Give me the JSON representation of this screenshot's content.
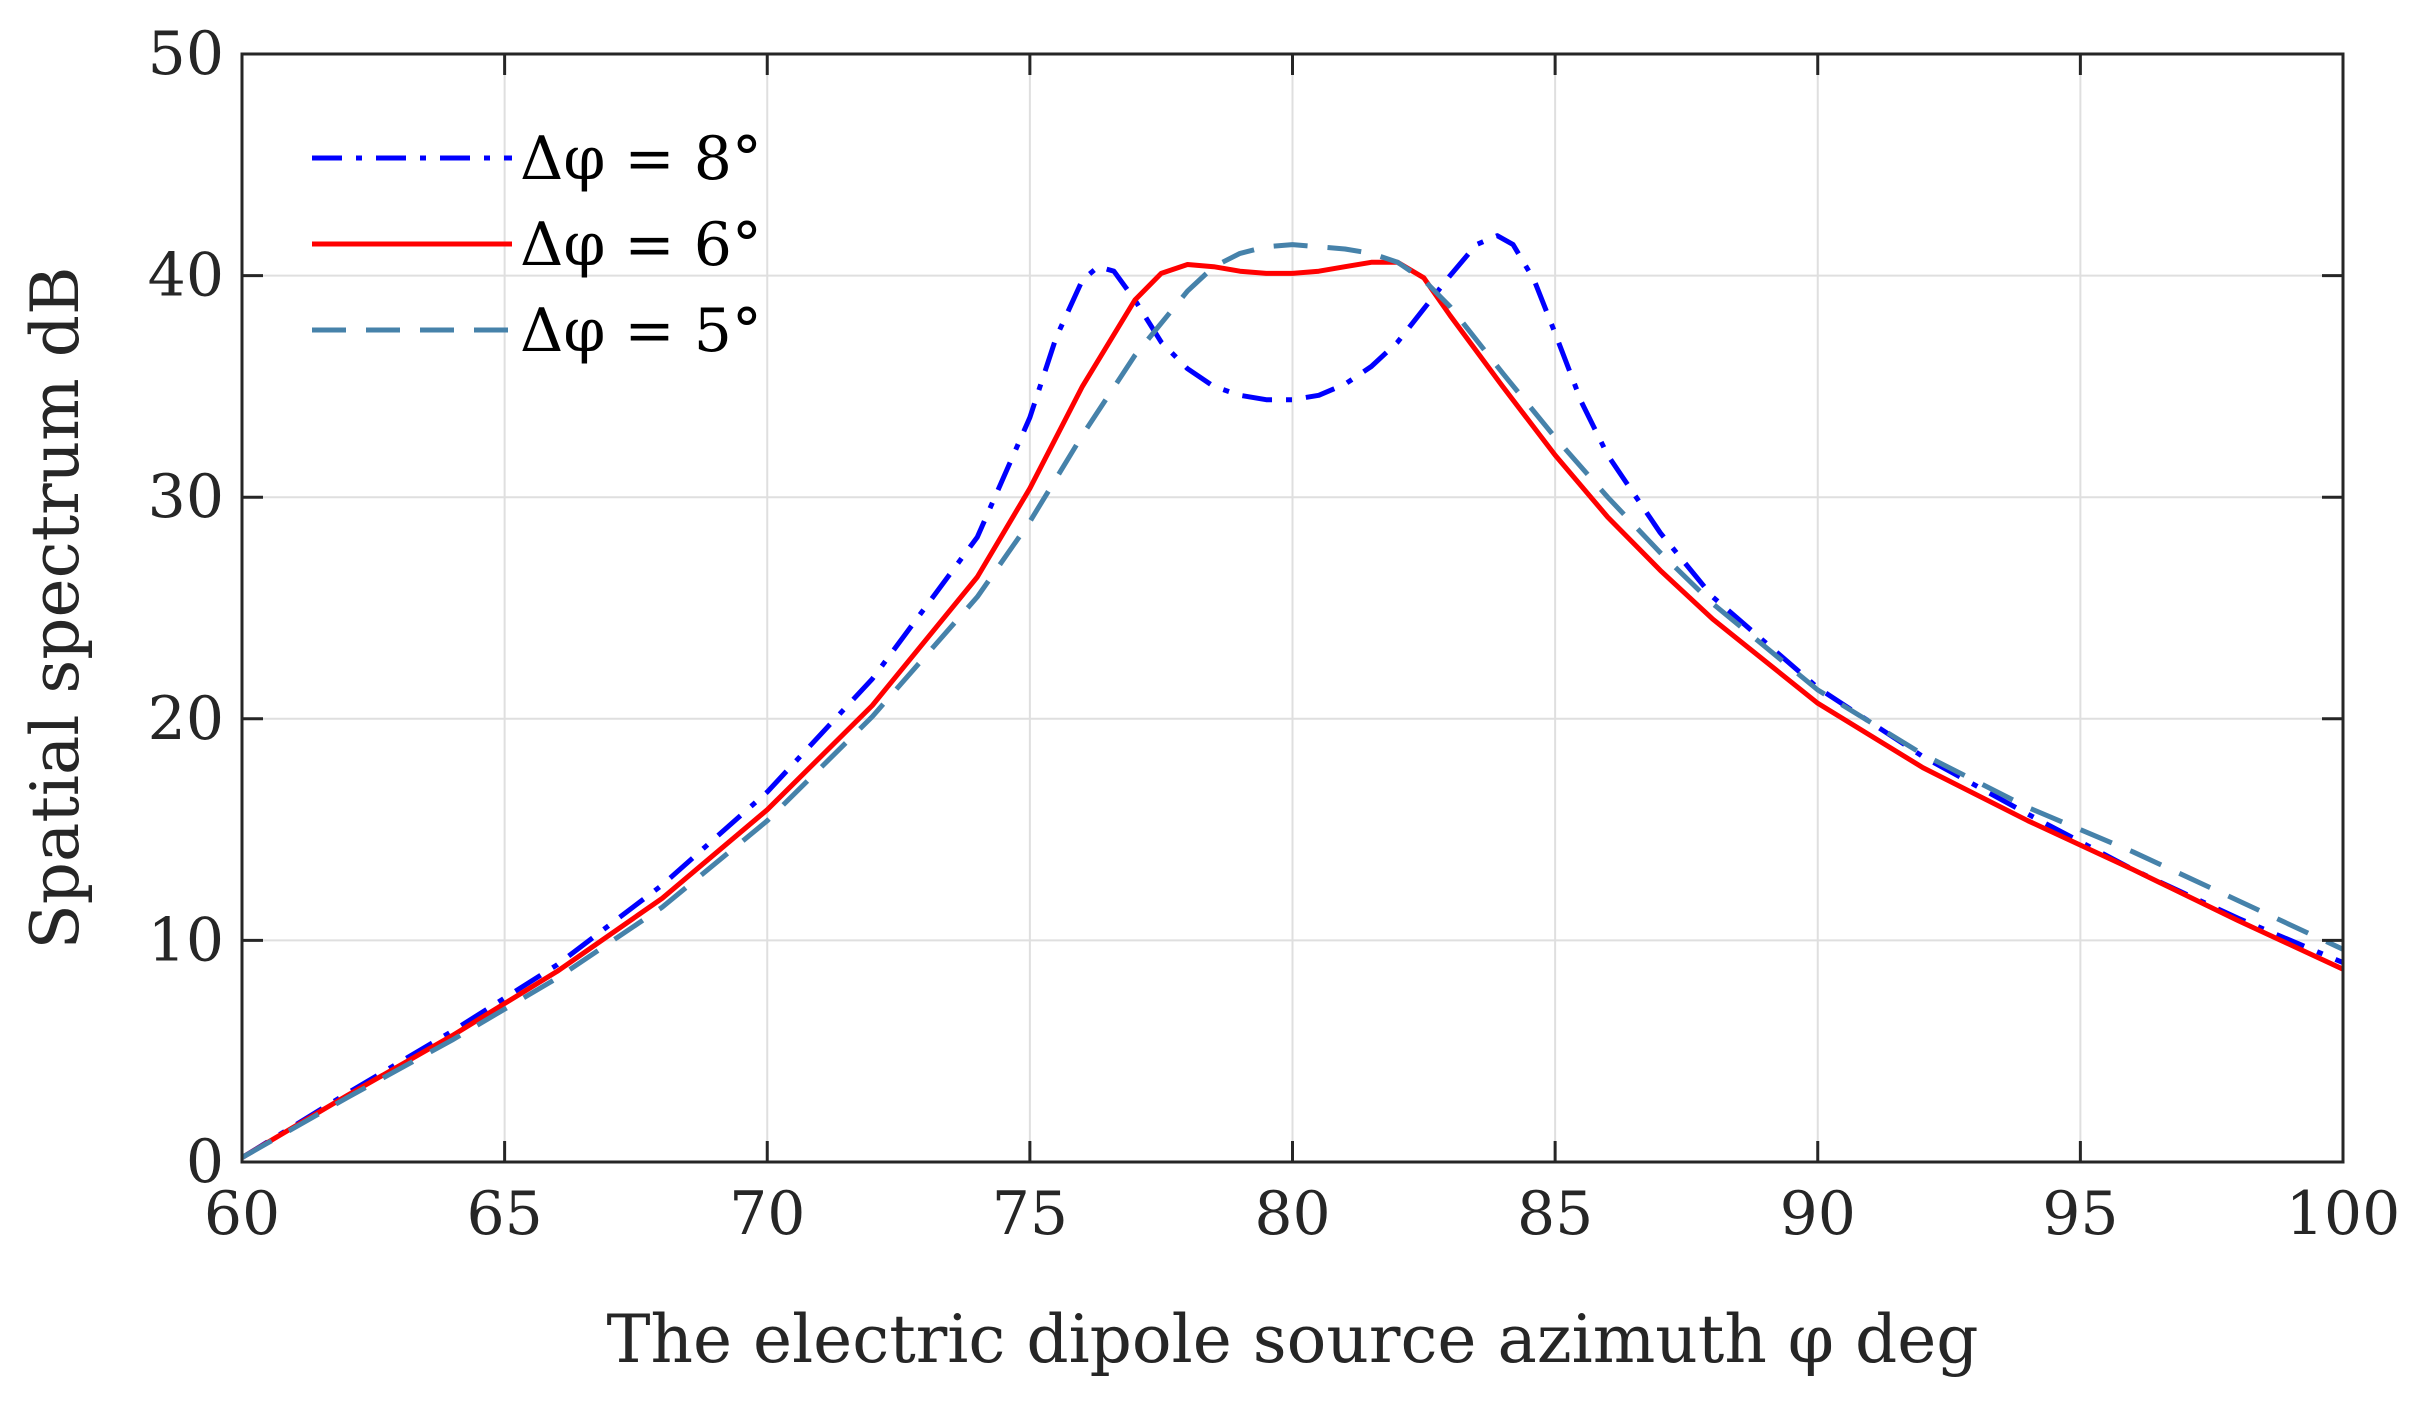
{
  "chart_data": {
    "type": "line",
    "title": "",
    "xlabel": "The electric dipole source azimuth φ deg",
    "ylabel": "Spatial spectrum dB",
    "xlim": [
      60,
      100
    ],
    "ylim": [
      0,
      50
    ],
    "xticks": [
      60,
      65,
      70,
      75,
      80,
      85,
      90,
      95,
      100
    ],
    "yticks": [
      0,
      10,
      20,
      30,
      40,
      50
    ],
    "grid": true,
    "legend_position": "top-left",
    "series": [
      {
        "name": "Δφ = 8°",
        "color": "#0000ff",
        "style": "dashdot",
        "x": [
          60,
          62,
          64,
          66,
          68,
          70,
          72,
          74,
          75,
          75.5,
          76,
          76.3,
          76.6,
          77,
          77.5,
          78,
          78.5,
          79,
          79.5,
          80,
          80.5,
          81,
          81.5,
          82,
          82.5,
          83,
          83.5,
          83.9,
          84.2,
          84.6,
          85,
          85.5,
          86,
          87,
          88,
          90,
          92,
          94,
          96,
          98,
          100
        ],
        "y": [
          0.2,
          3.1,
          5.9,
          8.9,
          12.5,
          16.7,
          21.8,
          28.2,
          33.6,
          37.2,
          39.8,
          40.4,
          40.2,
          38.9,
          37.0,
          35.8,
          35.0,
          34.6,
          34.4,
          34.4,
          34.6,
          35.1,
          35.9,
          37.0,
          38.5,
          40.0,
          41.4,
          41.8,
          41.4,
          39.8,
          37.4,
          34.3,
          31.9,
          28.4,
          25.5,
          21.4,
          18.3,
          15.7,
          13.2,
          11.0,
          9.0
        ]
      },
      {
        "name": "Δφ = 6°",
        "color": "#ff0000",
        "style": "solid",
        "x": [
          60,
          62,
          64,
          66,
          68,
          70,
          72,
          74,
          75,
          76,
          77,
          77.5,
          78,
          78.5,
          79,
          79.5,
          80,
          80.5,
          81,
          81.5,
          82,
          82.5,
          83,
          84,
          85,
          86,
          87,
          88,
          90,
          92,
          94,
          96,
          98,
          100
        ],
        "y": [
          0.2,
          3.0,
          5.7,
          8.6,
          11.9,
          15.9,
          20.6,
          26.4,
          30.4,
          35.0,
          38.9,
          40.1,
          40.5,
          40.4,
          40.2,
          40.1,
          40.1,
          40.2,
          40.4,
          40.6,
          40.6,
          39.9,
          38.2,
          35.0,
          31.9,
          29.1,
          26.7,
          24.5,
          20.7,
          17.8,
          15.4,
          13.2,
          10.9,
          8.7
        ]
      },
      {
        "name": "Δφ = 5°",
        "color": "#4682aa",
        "style": "dashed",
        "x": [
          60,
          62,
          64,
          66,
          68,
          70,
          72,
          74,
          75,
          76,
          77,
          78,
          78.5,
          79,
          79.5,
          80,
          80.5,
          81,
          81.5,
          82,
          82.5,
          83,
          84,
          85,
          86,
          87,
          88,
          90,
          92,
          94,
          96,
          98,
          100
        ],
        "y": [
          0.2,
          2.9,
          5.5,
          8.3,
          11.5,
          15.4,
          20.1,
          25.5,
          28.9,
          32.8,
          36.4,
          39.3,
          40.4,
          41.0,
          41.3,
          41.4,
          41.3,
          41.2,
          41.0,
          40.6,
          39.8,
          38.6,
          35.6,
          32.7,
          30.0,
          27.5,
          25.2,
          21.3,
          18.4,
          16.0,
          14.0,
          11.8,
          9.6
        ]
      }
    ]
  }
}
